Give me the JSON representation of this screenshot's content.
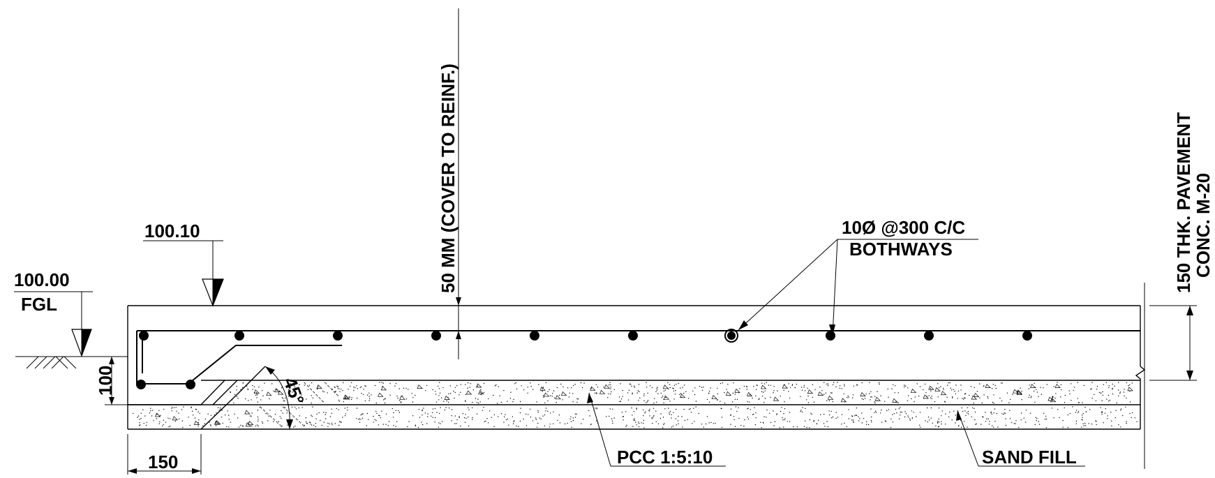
{
  "labels": {
    "level_top": "100.10",
    "level_ground": "100.00",
    "ground_label": "FGL",
    "cover": "50 MM (COVER TO REINF.)",
    "rebar_line1": "10Ø @300 C/C",
    "rebar_line2": "BOTHWAYS",
    "pavement_line1": "150 THK. PAVEMENT",
    "pavement_line2": "CONC. M-20",
    "dim_depth": "100",
    "angle": "45°",
    "dim_width": "150",
    "pcc": "PCC 1:5:10",
    "sand": "SAND FILL"
  },
  "colors": {
    "ink": "#000000",
    "background": "#ffffff"
  }
}
